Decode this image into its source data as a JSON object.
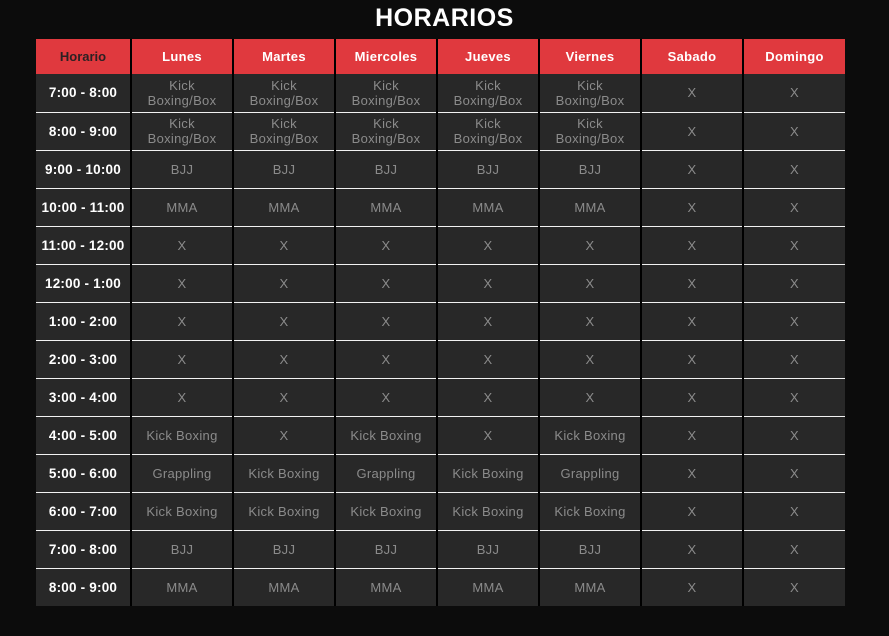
{
  "page": {
    "title": "HORARIOS"
  },
  "theme": {
    "header_red": "#e0393e",
    "page_bg": "#0c0c0c",
    "cell_bg": "#282828",
    "row_divider": "#f2f2f2",
    "col_divider": "#000000",
    "time_text": "#ffffff",
    "activity_text": "#8b8b8b",
    "header_time_text": "#2b2123",
    "header_day_text": "#ffffff"
  },
  "schedule": {
    "columns": [
      "Horario",
      "Lunes",
      "Martes",
      "Miercoles",
      "Jueves",
      "Viernes",
      "Sabado",
      "Domingo"
    ],
    "rows": [
      {
        "time": "7:00 - 8:00",
        "activities": [
          "Kick Boxing/Box",
          "Kick Boxing/Box",
          "Kick Boxing/Box",
          "Kick Boxing/Box",
          "Kick Boxing/Box",
          "X",
          "X"
        ]
      },
      {
        "time": "8:00 - 9:00",
        "activities": [
          "Kick Boxing/Box",
          "Kick Boxing/Box",
          "Kick Boxing/Box",
          "Kick Boxing/Box",
          "Kick Boxing/Box",
          "X",
          "X"
        ]
      },
      {
        "time": "9:00 - 10:00",
        "activities": [
          "BJJ",
          "BJJ",
          "BJJ",
          "BJJ",
          "BJJ",
          "X",
          "X"
        ]
      },
      {
        "time": "10:00 - 11:00",
        "activities": [
          "MMA",
          "MMA",
          "MMA",
          "MMA",
          "MMA",
          "X",
          "X"
        ]
      },
      {
        "time": "11:00 - 12:00",
        "activities": [
          "X",
          "X",
          "X",
          "X",
          "X",
          "X",
          "X"
        ]
      },
      {
        "time": "12:00 - 1:00",
        "activities": [
          "X",
          "X",
          "X",
          "X",
          "X",
          "X",
          "X"
        ]
      },
      {
        "time": "1:00 - 2:00",
        "activities": [
          "X",
          "X",
          "X",
          "X",
          "X",
          "X",
          "X"
        ]
      },
      {
        "time": "2:00 - 3:00",
        "activities": [
          "X",
          "X",
          "X",
          "X",
          "X",
          "X",
          "X"
        ]
      },
      {
        "time": "3:00 - 4:00",
        "activities": [
          "X",
          "X",
          "X",
          "X",
          "X",
          "X",
          "X"
        ]
      },
      {
        "time": "4:00 - 5:00",
        "activities": [
          "Kick Boxing",
          "X",
          "Kick Boxing",
          "X",
          "Kick Boxing",
          "X",
          "X"
        ]
      },
      {
        "time": "5:00 - 6:00",
        "activities": [
          "Grappling",
          "Kick Boxing",
          "Grappling",
          "Kick Boxing",
          "Grappling",
          "X",
          "X"
        ]
      },
      {
        "time": "6:00 - 7:00",
        "activities": [
          "Kick Boxing",
          "Kick Boxing",
          "Kick Boxing",
          "Kick Boxing",
          "Kick Boxing",
          "X",
          "X"
        ]
      },
      {
        "time": "7:00 - 8:00",
        "activities": [
          "BJJ",
          "BJJ",
          "BJJ",
          "BJJ",
          "BJJ",
          "X",
          "X"
        ]
      },
      {
        "time": "8:00 - 9:00",
        "activities": [
          "MMA",
          "MMA",
          "MMA",
          "MMA",
          "MMA",
          "X",
          "X"
        ]
      }
    ]
  }
}
